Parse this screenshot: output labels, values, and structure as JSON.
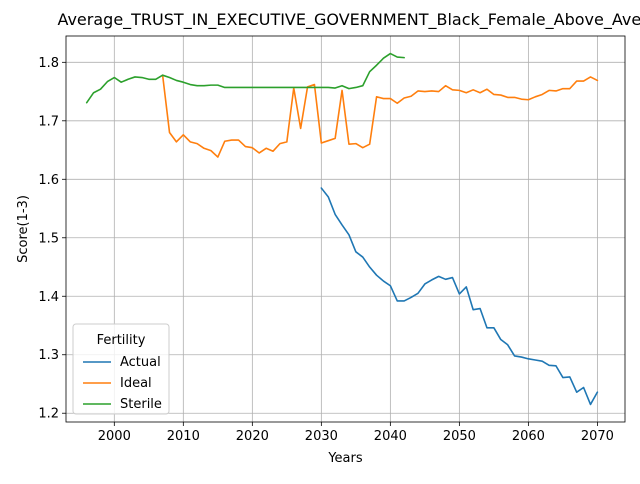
{
  "chart_data": {
    "type": "line",
    "title": "Average_TRUST_IN_EXECUTIVE_GOVERNMENT_Black_Female_Above_Average",
    "xlabel": "Years",
    "ylabel": "Score(1-3)",
    "xlim": [
      1993,
      2074
    ],
    "ylim": [
      1.185,
      1.845
    ],
    "xticks": [
      2000,
      2010,
      2020,
      2030,
      2040,
      2050,
      2060,
      2070
    ],
    "yticks": [
      1.2,
      1.3,
      1.4,
      1.5,
      1.6,
      1.7,
      1.8
    ],
    "grid": true,
    "legend": {
      "title": "Fertility",
      "position": "lower-left"
    },
    "series": [
      {
        "name": "Actual",
        "color": "#1f77b4",
        "x": [
          2030,
          2031,
          2032,
          2033,
          2034,
          2035,
          2036,
          2037,
          2038,
          2039,
          2040,
          2041,
          2042,
          2043,
          2044,
          2045,
          2046,
          2047,
          2048,
          2049,
          2050,
          2051,
          2052,
          2053,
          2054,
          2055,
          2056,
          2057,
          2058,
          2059,
          2060,
          2061,
          2062,
          2063,
          2064,
          2065,
          2066,
          2067,
          2068,
          2069,
          2070
        ],
        "values": [
          1.585,
          1.57,
          1.54,
          1.522,
          1.505,
          1.476,
          1.467,
          1.45,
          1.436,
          1.426,
          1.418,
          1.392,
          1.392,
          1.398,
          1.405,
          1.421,
          1.428,
          1.434,
          1.429,
          1.432,
          1.404,
          1.416,
          1.377,
          1.379,
          1.346,
          1.346,
          1.326,
          1.317,
          1.298,
          1.296,
          1.293,
          1.291,
          1.289,
          1.282,
          1.281,
          1.261,
          1.262,
          1.236,
          1.244,
          1.215,
          1.236
        ]
      },
      {
        "name": "Ideal",
        "color": "#ff7f0e",
        "x": [
          2007,
          2008,
          2009,
          2010,
          2011,
          2012,
          2013,
          2014,
          2015,
          2016,
          2017,
          2018,
          2019,
          2020,
          2021,
          2022,
          2023,
          2024,
          2025,
          2026,
          2027,
          2028,
          2029,
          2030,
          2031,
          2032,
          2033,
          2034,
          2035,
          2036,
          2037,
          2038,
          2039,
          2040,
          2041,
          2042,
          2043,
          2044,
          2045,
          2046,
          2047,
          2048,
          2049,
          2050,
          2051,
          2052,
          2053,
          2054,
          2055,
          2056,
          2057,
          2058,
          2059,
          2060,
          2061,
          2062,
          2063,
          2064,
          2065,
          2066,
          2067,
          2068,
          2069,
          2070
        ],
        "values": [
          1.778,
          1.68,
          1.664,
          1.676,
          1.664,
          1.661,
          1.653,
          1.649,
          1.638,
          1.665,
          1.667,
          1.667,
          1.656,
          1.654,
          1.645,
          1.653,
          1.648,
          1.661,
          1.664,
          1.756,
          1.687,
          1.758,
          1.762,
          1.662,
          1.666,
          1.67,
          1.752,
          1.66,
          1.661,
          1.654,
          1.66,
          1.741,
          1.738,
          1.738,
          1.73,
          1.739,
          1.742,
          1.751,
          1.75,
          1.751,
          1.75,
          1.76,
          1.753,
          1.752,
          1.748,
          1.753,
          1.748,
          1.754,
          1.745,
          1.744,
          1.74,
          1.74,
          1.737,
          1.736,
          1.741,
          1.745,
          1.752,
          1.751,
          1.755,
          1.755,
          1.768,
          1.768,
          1.775,
          1.769
        ]
      },
      {
        "name": "Sterile",
        "color": "#2ca02c",
        "x": [
          1996,
          1997,
          1998,
          1999,
          2000,
          2001,
          2002,
          2003,
          2004,
          2005,
          2006,
          2007,
          2008,
          2009,
          2010,
          2011,
          2012,
          2013,
          2014,
          2015,
          2016,
          2017,
          2018,
          2019,
          2020,
          2021,
          2022,
          2023,
          2024,
          2025,
          2026,
          2027,
          2028,
          2029,
          2030,
          2031,
          2032,
          2033,
          2034,
          2035,
          2036,
          2037,
          2038,
          2039,
          2040,
          2041,
          2042
        ],
        "values": [
          1.731,
          1.748,
          1.754,
          1.767,
          1.774,
          1.766,
          1.771,
          1.775,
          1.774,
          1.771,
          1.771,
          1.778,
          1.774,
          1.769,
          1.766,
          1.762,
          1.76,
          1.76,
          1.761,
          1.761,
          1.757,
          1.757,
          1.757,
          1.757,
          1.757,
          1.757,
          1.757,
          1.757,
          1.757,
          1.757,
          1.757,
          1.757,
          1.757,
          1.757,
          1.757,
          1.757,
          1.756,
          1.76,
          1.755,
          1.757,
          1.76,
          1.784,
          1.795,
          1.807,
          1.815,
          1.809,
          1.808
        ]
      }
    ]
  }
}
